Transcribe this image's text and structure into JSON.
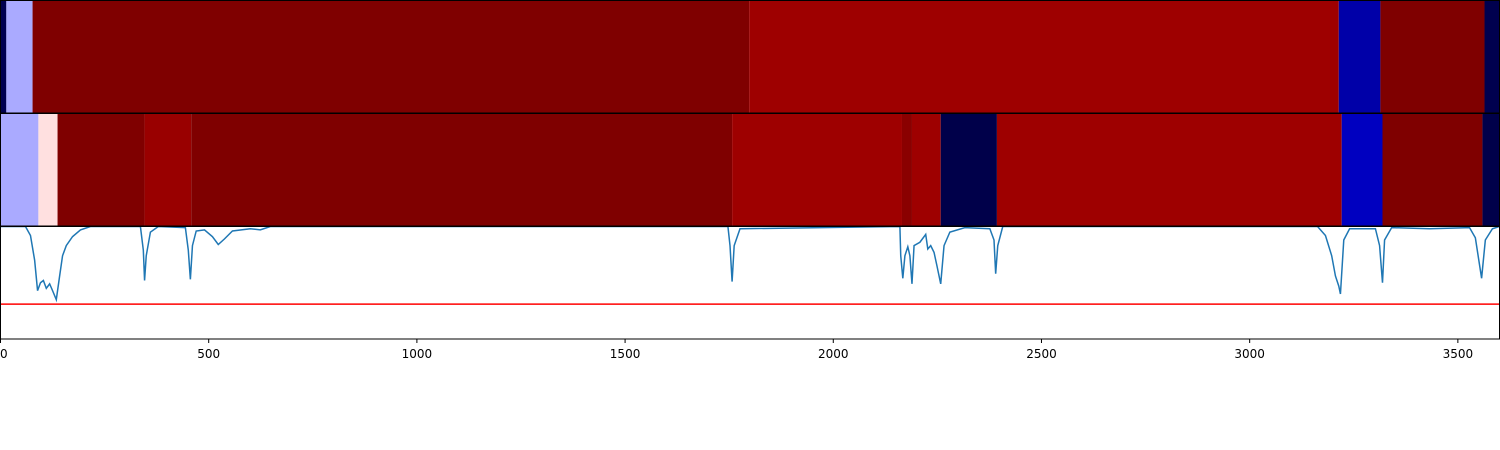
{
  "chart_data": [
    {
      "type": "segments",
      "xlim": [
        0,
        3600
      ],
      "edges": [
        0,
        14,
        77,
        1798,
        3214,
        3314,
        3564,
        3600
      ],
      "colors": [
        "#00004f",
        "#aaaaff",
        "#7f0000",
        "#9e0000",
        "#0000a8",
        "#7f0000",
        "#00004f"
      ]
    },
    {
      "type": "segments",
      "xlim": [
        0,
        3600
      ],
      "edges": [
        0,
        91,
        137,
        346,
        458,
        1757,
        2165,
        2189,
        2258,
        2393,
        3221,
        3319,
        3559,
        3600
      ],
      "colors": [
        "#aaaaff",
        "#ffe0e0",
        "#7f0000",
        "#990000",
        "#7f0000",
        "#9e0000",
        "#8a0000",
        "#9e0000",
        "#00004a",
        "#9e0000",
        "#0000c0",
        "#7f0000",
        "#00004a"
      ]
    },
    {
      "type": "line",
      "xlim": [
        0,
        3600
      ],
      "xticks": [
        0,
        500,
        1000,
        1500,
        2000,
        2500,
        3000,
        3500
      ],
      "ylim": [
        0,
        1
      ],
      "color": "#1f77b4",
      "hline": {
        "value": 0.31,
        "color": "#ff0000"
      },
      "x": [
        0,
        60,
        72,
        82,
        89,
        96,
        103,
        110,
        118,
        125,
        134,
        142,
        149,
        158,
        173,
        192,
        216,
        336,
        343,
        346,
        350,
        360,
        379,
        444,
        451,
        456,
        461,
        470,
        490,
        509,
        523,
        538,
        557,
        600,
        624,
        648,
        1747,
        1752,
        1757,
        1762,
        1776,
        2160,
        2162,
        2167,
        2172,
        2179,
        2184,
        2189,
        2194,
        2208,
        2222,
        2227,
        2234,
        2242,
        2249,
        2258,
        2266,
        2280,
        2316,
        2376,
        2386,
        2390,
        2395,
        2407,
        3163,
        3182,
        3197,
        3206,
        3214,
        3218,
        3226,
        3240,
        3302,
        3312,
        3319,
        3324,
        3341,
        3432,
        3528,
        3542,
        3557,
        3566,
        3583,
        3600
      ],
      "values": [
        1.0,
        1.0,
        0.92,
        0.7,
        0.43,
        0.5,
        0.52,
        0.45,
        0.49,
        0.43,
        0.35,
        0.56,
        0.74,
        0.83,
        0.91,
        0.97,
        1.0,
        1.0,
        0.79,
        0.52,
        0.74,
        0.95,
        1.0,
        0.99,
        0.79,
        0.53,
        0.83,
        0.96,
        0.97,
        0.91,
        0.84,
        0.89,
        0.96,
        0.98,
        0.97,
        1.0,
        1.0,
        0.83,
        0.51,
        0.83,
        0.98,
        1.0,
        0.74,
        0.54,
        0.74,
        0.82,
        0.74,
        0.49,
        0.83,
        0.86,
        0.93,
        0.8,
        0.83,
        0.77,
        0.65,
        0.49,
        0.83,
        0.95,
        0.99,
        0.98,
        0.88,
        0.58,
        0.83,
        1.0,
        1.0,
        0.92,
        0.74,
        0.56,
        0.47,
        0.4,
        0.88,
        0.98,
        0.98,
        0.83,
        0.5,
        0.88,
        0.99,
        0.98,
        0.99,
        0.9,
        0.54,
        0.88,
        0.98,
        1.0
      ]
    }
  ]
}
